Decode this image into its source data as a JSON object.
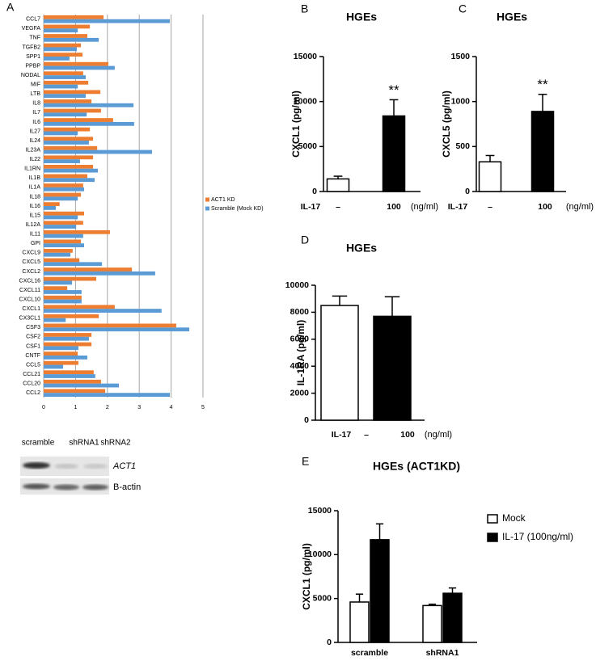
{
  "chart_data": [
    {
      "type": "barh",
      "panel": "A",
      "categories": [
        "CCL7",
        "VEGFA",
        "TNF",
        "TGFB2",
        "SPP1",
        "PPBP",
        "NODAL",
        "MIF",
        "LTB",
        "IL8",
        "IL7",
        "IL6",
        "IL27",
        "IL24",
        "IL23A",
        "IL22",
        "IL1RN",
        "IL1B",
        "IL1A",
        "IL18",
        "IL16",
        "IL15",
        "IL12A",
        "IL11",
        "GPI",
        "CXCL9",
        "CXCL5",
        "CXCL2",
        "CXCL16",
        "CXCL11",
        "CXCL10",
        "CXCL1",
        "CX3CL1",
        "CSF3",
        "CSF2",
        "CSF1",
        "CNTF",
        "CCL5",
        "CCL21",
        "CCL20",
        "CCL2"
      ],
      "series": [
        {
          "name": "ACT1 KD",
          "color": "#ed7d31",
          "values": [
            1.88,
            1.45,
            1.37,
            1.17,
            1.22,
            2.03,
            1.24,
            1.4,
            1.78,
            1.5,
            1.8,
            2.18,
            1.45,
            1.55,
            1.68,
            1.55,
            1.55,
            1.37,
            1.24,
            1.17,
            0.5,
            1.27,
            1.24,
            2.08,
            1.17,
            0.91,
            1.12,
            2.77,
            1.65,
            0.74,
            1.19,
            2.23,
            1.73,
            4.16,
            1.5,
            1.5,
            1.07,
            1.09,
            1.57,
            1.8,
            1.93
          ]
        },
        {
          "name": "Scramble (Mock KD)",
          "color": "#5b9bd5",
          "values": [
            3.96,
            1.07,
            1.73,
            1.04,
            0.81,
            2.23,
            1.32,
            1.07,
            1.32,
            2.82,
            1.35,
            2.84,
            1.07,
            1.42,
            3.4,
            1.14,
            1.7,
            1.6,
            1.27,
            1.07,
            0.38,
            1.07,
            1.02,
            1.24,
            1.27,
            0.84,
            1.83,
            3.5,
            0.89,
            1.19,
            1.19,
            3.7,
            0.69,
            4.57,
            1.42,
            1.09,
            1.37,
            0.61,
            1.62,
            2.36,
            3.96
          ]
        }
      ],
      "xlim": [
        0,
        5
      ],
      "xticks": [
        0,
        1,
        2,
        3,
        4,
        5
      ],
      "grid": true,
      "legend": "right"
    },
    {
      "type": "bar",
      "panel": "B",
      "title": "HGEs",
      "ylabel": "CXCL1 (pg/ml)",
      "xlabel": "IL-17",
      "xlabel_unit": "(ng/ml)",
      "categories": [
        "–",
        "100"
      ],
      "values": [
        1400,
        8400
      ],
      "errors": [
        300,
        1800
      ],
      "colors": [
        "#ffffff",
        "#000000"
      ],
      "annotations": [
        {
          "category": "100",
          "text": "**"
        }
      ],
      "ylim": [
        0,
        15000
      ],
      "yticks": [
        0,
        5000,
        10000,
        15000
      ]
    },
    {
      "type": "bar",
      "panel": "C",
      "title": "HGEs",
      "ylabel": "CXCL5 (pg/ml)",
      "xlabel": "IL-17",
      "xlabel_unit": "(ng/ml)",
      "categories": [
        "–",
        "100"
      ],
      "values": [
        330,
        890
      ],
      "errors": [
        70,
        190
      ],
      "colors": [
        "#ffffff",
        "#000000"
      ],
      "annotations": [
        {
          "category": "100",
          "text": "**"
        }
      ],
      "ylim": [
        0,
        1500
      ],
      "yticks": [
        0,
        500,
        1000,
        1500
      ]
    },
    {
      "type": "bar",
      "panel": "D",
      "title": "HGEs",
      "ylabel": "IL-1RA (pg/ml)",
      "xlabel": "IL-17",
      "xlabel_unit": "(ng/ml)",
      "categories": [
        "–",
        "100"
      ],
      "values": [
        8500,
        7700
      ],
      "errors": [
        700,
        1450
      ],
      "colors": [
        "#ffffff",
        "#000000"
      ],
      "ylim": [
        0,
        10000
      ],
      "yticks": [
        0,
        2000,
        4000,
        6000,
        8000,
        10000
      ]
    },
    {
      "type": "bar",
      "panel": "E",
      "title": "HGEs (ACT1KD)",
      "ylabel": "CXCL1 (pg/ml)",
      "categories": [
        "scramble",
        "shRNA1"
      ],
      "series": [
        {
          "name": "Mock",
          "color": "#ffffff",
          "values": [
            4600,
            4200
          ],
          "errors": [
            900,
            150
          ]
        },
        {
          "name": "IL-17 (100ng/ml)",
          "color": "#000000",
          "values": [
            11700,
            5600
          ],
          "errors": [
            1800,
            600
          ]
        }
      ],
      "ylim": [
        0,
        15000
      ],
      "yticks": [
        0,
        5000,
        10000,
        15000
      ],
      "legend": "right"
    }
  ],
  "western_blot": {
    "lanes": [
      "scramble",
      "shRNA1",
      "shRNA2"
    ],
    "rows": [
      "ACT1",
      "B-actin"
    ]
  }
}
